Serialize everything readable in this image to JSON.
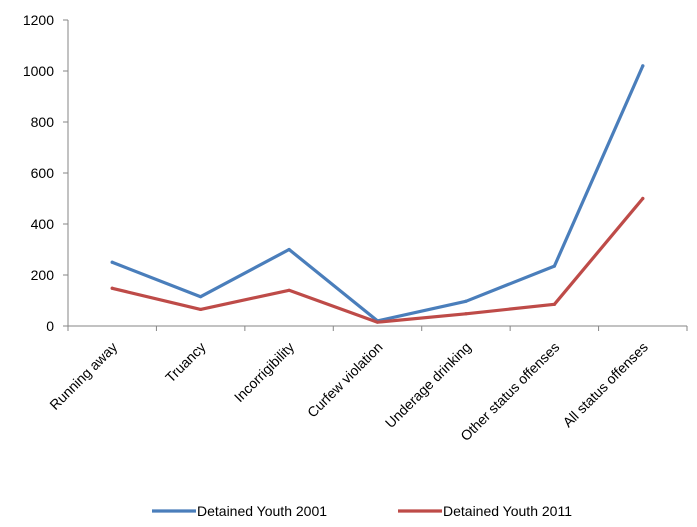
{
  "chart_data": {
    "type": "line",
    "categories": [
      "Running away",
      "Truancy",
      "Incorrigibility",
      "Curfew violation",
      "Underage drinking",
      "Other status offenses",
      "All status offenses"
    ],
    "series": [
      {
        "name": "Detained Youth 2001",
        "values": [
          250,
          115,
          300,
          20,
          97,
          235,
          1020
        ],
        "color": "#4a7ebb"
      },
      {
        "name": "Detained Youth 2011",
        "values": [
          148,
          65,
          140,
          15,
          48,
          85,
          500
        ],
        "color": "#be4b48"
      }
    ],
    "ylim": [
      0,
      1200
    ],
    "yticks": [
      0,
      200,
      400,
      600,
      800,
      1000,
      1200
    ],
    "grid": false,
    "legend": "bottom"
  }
}
